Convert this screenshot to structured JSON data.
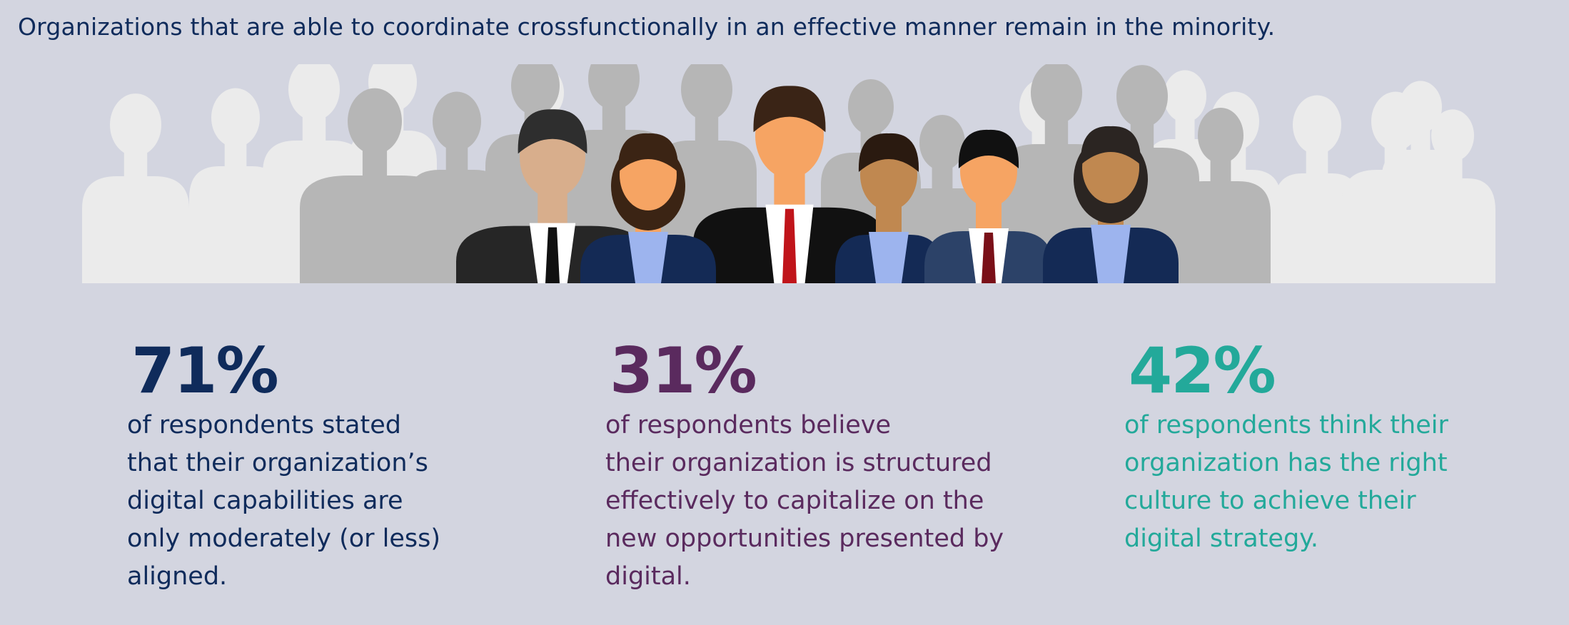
{
  "header": {
    "title": "Organizations that are able to coordinate crossfunctionally in an effective manner remain in the minority."
  },
  "stats": [
    {
      "value": "71%",
      "lines": [
        "of respondents stated",
        "that their organization’s",
        "digital capabilities are",
        "only moderately (or less)",
        "aligned."
      ]
    },
    {
      "value": "31%",
      "lines": [
        "of respondents believe",
        "their organization is structured",
        "effectively to capitalize on the",
        "new opportunities presented by",
        "digital."
      ]
    },
    {
      "value": "42%",
      "lines": [
        "of respondents think their",
        "organization has the right",
        "culture to achieve their",
        "digital strategy."
      ]
    }
  ]
}
